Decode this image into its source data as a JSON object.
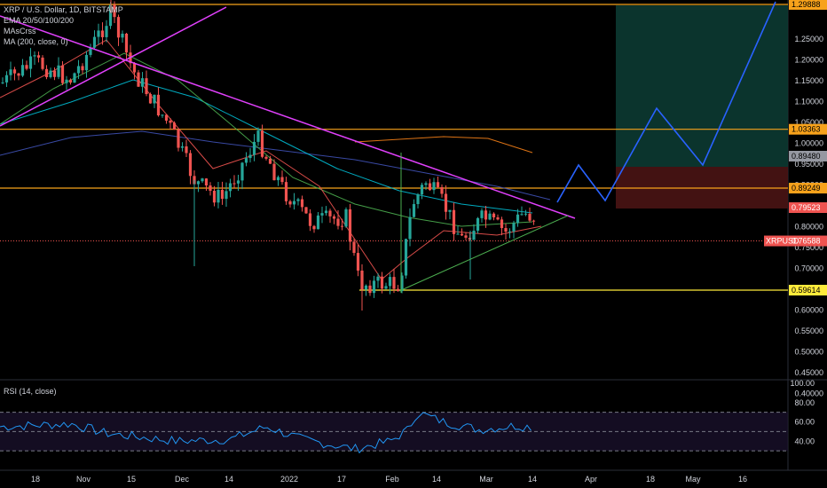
{
  "header": {
    "symbol_line": "XRP / U.S. Dollar, 1D, BITSTAMP",
    "indicators": [
      "EMA 20/50/100/200",
      "MAsCrss",
      "MA (200, close, 0)"
    ]
  },
  "rsi_label": "RSI (14, close)",
  "price_axis": {
    "currency": "USD",
    "ticks": [
      "1.25000",
      "1.20000",
      "1.15000",
      "1.10000",
      "1.05000",
      "1.00000",
      "0.95000",
      "0.90000",
      "0.85000",
      "0.80000",
      "0.75000",
      "0.70000",
      "0.65000",
      "0.60000",
      "0.55000",
      "0.50000",
      "0.45000",
      "0.40000"
    ],
    "tags": [
      {
        "text": "1.29888",
        "bg": "#f7a21b",
        "fg": "#000000"
      },
      {
        "text": "1.03363",
        "bg": "#f7a21b",
        "fg": "#000000"
      },
      {
        "text": "0.89480",
        "bg": "#9598a1",
        "fg": "#000000"
      },
      {
        "text": "0.89249",
        "bg": "#f7a21b",
        "fg": "#000000"
      },
      {
        "text": "0.79523",
        "bg": "#ef5350",
        "fg": "#ffffff"
      },
      {
        "text": "0.76588",
        "bg": "#ef5350",
        "fg": "#ffffff"
      },
      {
        "text": "0.59614",
        "bg": "#ffeb3b",
        "fg": "#000000"
      }
    ],
    "symbol_tag": "XRPUSD"
  },
  "rsi_axis": {
    "ticks": [
      "100.00",
      "80.00",
      "60.00",
      "40.00"
    ]
  },
  "time_axis": {
    "labels": [
      "18",
      "Nov",
      "15",
      "Dec",
      "14",
      "2022",
      "17",
      "Feb",
      "14",
      "Mar",
      "14",
      "Apr",
      "18",
      "May",
      "16"
    ]
  },
  "colors": {
    "up": "#26a69a",
    "down": "#ef5350",
    "trend_down": "#e040fb",
    "support": "#ffeb3b",
    "hline": "#f7a21b",
    "projection": "#2962ff",
    "triangle_low": "#4caf50",
    "ema20": "#ef5350",
    "ema50": "#4caf50",
    "ema100": "#00bcd4",
    "ema200": "#3f51b5",
    "ma200": "#f57f17",
    "rsi": "#2196f3"
  },
  "chart_data": {
    "type": "candlestick",
    "symbol": "XRP / U.S. Dollar",
    "timeframe": "1D",
    "exchange": "BITSTAMP",
    "ylim": [
      0.38,
      1.3
    ],
    "levels": [
      1.29888,
      1.03363,
      0.89249,
      0.59614
    ],
    "last_price": 0.76588,
    "rsi": {
      "ylim": [
        20,
        100
      ],
      "bands": [
        70,
        50,
        30
      ]
    }
  }
}
